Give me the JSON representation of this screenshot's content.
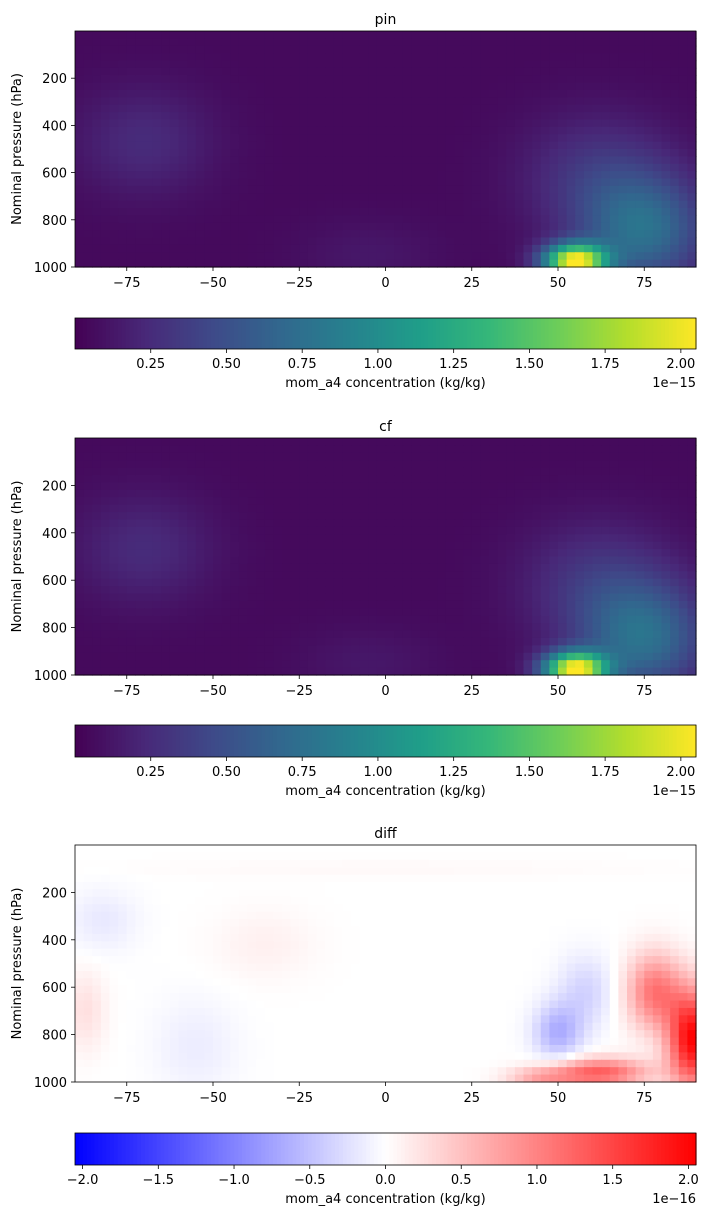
{
  "chart_data": [
    {
      "type": "heatmap",
      "title": "pin",
      "xlabel": "",
      "ylabel": "Nominal pressure (hPa)",
      "xlim": [
        -90,
        90
      ],
      "ylim": [
        1000,
        0
      ],
      "xticks": [
        -75,
        -50,
        -25,
        0,
        25,
        50,
        75
      ],
      "yticks": [
        200,
        400,
        600,
        800,
        1000
      ],
      "colormap": "viridis",
      "colorbar": {
        "label": "mom_a4 concentration (kg/kg)",
        "min": 0,
        "max": 2.05,
        "ticks": [
          0.25,
          0.5,
          0.75,
          1.0,
          1.25,
          1.5,
          1.75,
          2.0
        ],
        "tick_labels": [
          "0.25",
          "0.50",
          "0.75",
          "1.00",
          "1.25",
          "1.50",
          "1.75",
          "2.00"
        ],
        "offset": "1e−15"
      },
      "features": [
        {
          "lat": 55,
          "p": 960,
          "value": 2.0,
          "note": "surface maximum"
        },
        {
          "lat": -70,
          "p": 500,
          "value": 0.25
        }
      ]
    },
    {
      "type": "heatmap",
      "title": "cf",
      "xlabel": "",
      "ylabel": "Nominal pressure (hPa)",
      "xlim": [
        -90,
        90
      ],
      "ylim": [
        1000,
        0
      ],
      "xticks": [
        -75,
        -50,
        -25,
        0,
        25,
        50,
        75
      ],
      "yticks": [
        200,
        400,
        600,
        800,
        1000
      ],
      "colormap": "viridis",
      "colorbar": {
        "label": "mom_a4 concentration (kg/kg)",
        "min": 0,
        "max": 2.05,
        "ticks": [
          0.25,
          0.5,
          0.75,
          1.0,
          1.25,
          1.5,
          1.75,
          2.0
        ],
        "tick_labels": [
          "0.25",
          "0.50",
          "0.75",
          "1.00",
          "1.25",
          "1.50",
          "1.75",
          "2.00"
        ],
        "offset": "1e−15"
      },
      "features": [
        {
          "lat": 55,
          "p": 960,
          "value": 2.0
        },
        {
          "lat": -70,
          "p": 500,
          "value": 0.25
        }
      ]
    },
    {
      "type": "heatmap",
      "title": "diff",
      "xlabel": "",
      "ylabel": "Nominal pressure (hPa)",
      "xlim": [
        -90,
        90
      ],
      "ylim": [
        1000,
        0
      ],
      "xticks": [
        -75,
        -50,
        -25,
        0,
        25,
        50,
        75
      ],
      "yticks": [
        200,
        400,
        600,
        800,
        1000
      ],
      "colormap": "bwr",
      "colorbar": {
        "label": "mom_a4 concentration (kg/kg)",
        "min": -2.05,
        "max": 2.05,
        "ticks": [
          -2.0,
          -1.5,
          -1.0,
          -0.5,
          0.0,
          0.5,
          1.0,
          1.5,
          2.0
        ],
        "tick_labels": [
          "−2.0",
          "−1.5",
          "−1.0",
          "−0.5",
          "0.0",
          "0.5",
          "1.0",
          "1.5",
          "2.0"
        ],
        "offset": "1e−16"
      },
      "features": [
        {
          "lat": 87,
          "p": 800,
          "value": 2.0
        },
        {
          "lat": 60,
          "p": 950,
          "value": 1.3
        },
        {
          "lat": 50,
          "p": 780,
          "value": -0.5
        },
        {
          "lat": -80,
          "p": 320,
          "value": -0.2
        },
        {
          "lat": -85,
          "p": 700,
          "value": 0.3
        }
      ]
    }
  ]
}
